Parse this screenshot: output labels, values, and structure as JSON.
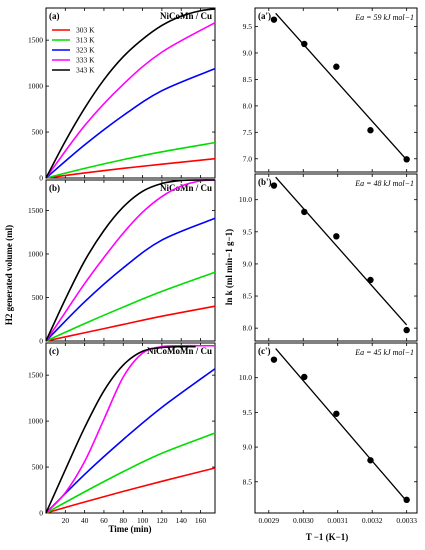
{
  "figure": {
    "left_xlabel": "Time (min)",
    "left_ylabel": "H2 generated volume (ml)",
    "right_xlabel": "T −1 (K−1)",
    "right_ylabel": "ln k (ml min−1 g−1)"
  },
  "chart_data": [
    {
      "type": "line",
      "panel_label": "(a)",
      "title": "NiCoMn / Cu",
      "xlim": [
        0,
        175
      ],
      "ylim": [
        0,
        1850
      ],
      "x_ticks": [
        20,
        40,
        60,
        80,
        100,
        120,
        140,
        160
      ],
      "y_ticks": [
        0,
        500,
        1000,
        1500
      ],
      "legend_position": "top-left",
      "series": [
        {
          "name": "303 K",
          "color": "#ff0000",
          "x": [
            0,
            40,
            80,
            120,
            175
          ],
          "y": [
            0,
            55,
            105,
            150,
            210
          ]
        },
        {
          "name": "313 K",
          "color": "#00dd00",
          "x": [
            0,
            40,
            80,
            120,
            175
          ],
          "y": [
            0,
            105,
            200,
            285,
            385
          ]
        },
        {
          "name": "323 K",
          "color": "#0000ff",
          "x": [
            0,
            40,
            80,
            120,
            175
          ],
          "y": [
            0,
            360,
            680,
            950,
            1190
          ]
        },
        {
          "name": "333 K",
          "color": "#ff00ff",
          "x": [
            0,
            40,
            80,
            120,
            175
          ],
          "y": [
            0,
            570,
            1020,
            1370,
            1690
          ]
        },
        {
          "name": "343 K",
          "color": "#000000",
          "x": [
            0,
            20,
            40,
            60,
            80,
            100,
            120,
            140,
            160,
            175
          ],
          "y": [
            0,
            400,
            760,
            1070,
            1320,
            1510,
            1660,
            1760,
            1820,
            1840
          ]
        }
      ]
    },
    {
      "type": "line",
      "panel_label": "(b)",
      "title": "NiCoMn / Cu",
      "xlim": [
        0,
        175
      ],
      "ylim": [
        0,
        1850
      ],
      "x_ticks": [
        20,
        40,
        60,
        80,
        100,
        120,
        140,
        160
      ],
      "y_ticks": [
        0,
        500,
        1000,
        1500
      ],
      "series": [
        {
          "name": "303 K",
          "color": "#ff0000",
          "x": [
            0,
            40,
            80,
            120,
            175
          ],
          "y": [
            0,
            95,
            190,
            285,
            400
          ]
        },
        {
          "name": "313 K",
          "color": "#00dd00",
          "x": [
            0,
            40,
            80,
            120,
            175
          ],
          "y": [
            0,
            200,
            390,
            570,
            790
          ]
        },
        {
          "name": "323 K",
          "color": "#0000ff",
          "x": [
            0,
            40,
            80,
            120,
            175
          ],
          "y": [
            0,
            450,
            840,
            1160,
            1410
          ]
        },
        {
          "name": "333 K",
          "color": "#ff00ff",
          "x": [
            0,
            20,
            40,
            60,
            80,
            100,
            120,
            140,
            160,
            175
          ],
          "y": [
            0,
            330,
            660,
            960,
            1240,
            1480,
            1660,
            1780,
            1840,
            1850
          ]
        },
        {
          "name": "343 K",
          "color": "#000000",
          "x": [
            0,
            20,
            40,
            60,
            80,
            100,
            120,
            140,
            160,
            175
          ],
          "y": [
            0,
            480,
            920,
            1270,
            1540,
            1720,
            1810,
            1845,
            1850,
            1850
          ]
        }
      ]
    },
    {
      "type": "line",
      "panel_label": "(c)",
      "title": "NiCoMoMn / Cu",
      "xlim": [
        0,
        175
      ],
      "ylim": [
        0,
        1850
      ],
      "x_ticks": [
        20,
        40,
        60,
        80,
        100,
        120,
        140,
        160
      ],
      "y_ticks": [
        0,
        500,
        1000,
        1500
      ],
      "series": [
        {
          "name": "303 K",
          "color": "#ff0000",
          "x": [
            0,
            40,
            80,
            120,
            175
          ],
          "y": [
            0,
            120,
            235,
            345,
            490
          ]
        },
        {
          "name": "313 K",
          "color": "#00dd00",
          "x": [
            0,
            40,
            80,
            120,
            175
          ],
          "y": [
            0,
            230,
            450,
            650,
            870
          ]
        },
        {
          "name": "323 K",
          "color": "#0000ff",
          "x": [
            0,
            40,
            80,
            120,
            175
          ],
          "y": [
            0,
            420,
            800,
            1150,
            1570
          ]
        },
        {
          "name": "333 K",
          "color": "#ff00ff",
          "x": [
            0,
            20,
            40,
            60,
            80,
            100,
            120,
            140,
            160,
            175
          ],
          "y": [
            0,
            220,
            560,
            1020,
            1480,
            1740,
            1810,
            1820,
            1820,
            1820
          ]
        },
        {
          "name": "343 K",
          "color": "#000000",
          "x": [
            0,
            20,
            40,
            60,
            80,
            100,
            120,
            140,
            155
          ],
          "y": [
            0,
            470,
            930,
            1330,
            1610,
            1760,
            1800,
            1810,
            1810
          ]
        }
      ]
    },
    {
      "type": "scatter",
      "panel_label": "(a')",
      "annotation": "Ea = 59 kJ mol−1",
      "xlim": [
        0.00286,
        0.00333
      ],
      "ylim": [
        6.75,
        9.85
      ],
      "x_ticks": [
        0.0029,
        0.003,
        0.0031,
        0.0032,
        0.0033
      ],
      "x_tick_labels": [
        "0.0029",
        "0.0030",
        "0.0031",
        "0.0032",
        "0.0033"
      ],
      "y_ticks": [
        7.0,
        7.5,
        8.0,
        8.5,
        9.0,
        9.5
      ],
      "y_tick_labels": [
        "7.0",
        "7.5",
        "8.0",
        "8.5",
        "9.0",
        "9.5"
      ],
      "points": {
        "x": [
          0.002915,
          0.003003,
          0.003096,
          0.003195,
          0.0033
        ],
        "y": [
          9.63,
          9.17,
          8.74,
          7.54,
          6.99
        ]
      },
      "fit": {
        "x": [
          0.00292,
          0.0033
        ],
        "y": [
          9.75,
          6.98
        ]
      }
    },
    {
      "type": "scatter",
      "panel_label": "(b')",
      "annotation": "Ea = 48 kJ mol−1",
      "xlim": [
        0.00286,
        0.00333
      ],
      "ylim": [
        7.8,
        10.4
      ],
      "x_ticks": [
        0.0029,
        0.003,
        0.0031,
        0.0032,
        0.0033
      ],
      "x_tick_labels": [
        "0.0029",
        "0.0030",
        "0.0031",
        "0.0032",
        "0.0033"
      ],
      "y_ticks": [
        8.0,
        8.5,
        9.0,
        9.5,
        10.0
      ],
      "y_tick_labels": [
        "8.0",
        "8.5",
        "9.0",
        "9.5",
        "10.0"
      ],
      "points": {
        "x": [
          0.002915,
          0.003003,
          0.003096,
          0.003195,
          0.0033
        ],
        "y": [
          10.22,
          9.81,
          9.43,
          8.75,
          7.97
        ]
      },
      "fit": {
        "x": [
          0.00292,
          0.0033
        ],
        "y": [
          10.35,
          8.05
        ]
      }
    },
    {
      "type": "scatter",
      "panel_label": "(c')",
      "annotation": "Ea = 45 kJ mol−1",
      "xlim": [
        0.00286,
        0.00333
      ],
      "ylim": [
        8.05,
        10.5
      ],
      "x_ticks": [
        0.0029,
        0.003,
        0.0031,
        0.0032,
        0.0033
      ],
      "x_tick_labels": [
        "0.0029",
        "0.0030",
        "0.0031",
        "0.0032",
        "0.0033"
      ],
      "y_ticks": [
        8.5,
        9.0,
        9.5,
        10.0
      ],
      "y_tick_labels": [
        "8.5",
        "9.0",
        "9.5",
        "10.0"
      ],
      "points": {
        "x": [
          0.002915,
          0.003003,
          0.003096,
          0.003195,
          0.0033
        ],
        "y": [
          10.26,
          10.01,
          9.48,
          8.81,
          8.24
        ]
      },
      "fit": {
        "x": [
          0.00292,
          0.0033
        ],
        "y": [
          10.42,
          8.22
        ]
      }
    }
  ]
}
